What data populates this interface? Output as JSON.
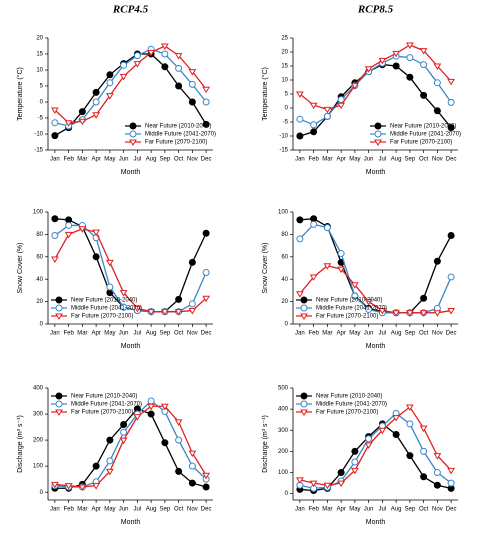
{
  "chart_data": [
    {
      "type": "line",
      "title": "RCP4.5",
      "xlabel": "Month",
      "ylabel": "Temperature (°C)",
      "categories": [
        "Jan",
        "Feb",
        "Mar",
        "Apr",
        "May",
        "Jun",
        "Jul",
        "Aug",
        "Sep",
        "Oct",
        "Nov",
        "Dec"
      ],
      "ylim": [
        -15,
        20
      ],
      "yticks": [
        -15,
        -10,
        -5,
        0,
        5,
        10,
        15,
        20
      ],
      "legend": "lower right",
      "series": [
        {
          "name": "Near Future (2010-2040)",
          "color": "#000000",
          "marker": "filled-circle",
          "values": [
            -10.5,
            -8,
            -3,
            3,
            8.5,
            12,
            15,
            15,
            11,
            5,
            0,
            -7
          ]
        },
        {
          "name": "Middle Future (2041-2070)",
          "color": "#3a87c8",
          "marker": "open-circle",
          "values": [
            -6.5,
            -7.5,
            -5.5,
            0,
            6,
            11.5,
            14.5,
            16.5,
            15,
            10.5,
            5.5,
            0
          ]
        },
        {
          "name": "Far Future (2070-2100)",
          "color": "#e02020",
          "marker": "open-triangle",
          "values": [
            -2.5,
            -6.5,
            -6,
            -4,
            2,
            8,
            12,
            15.5,
            17.5,
            14.5,
            9.5,
            4
          ]
        }
      ]
    },
    {
      "type": "line",
      "title": "RCP8.5",
      "xlabel": "Month",
      "ylabel": "Temperature (°C)",
      "categories": [
        "Jan",
        "Feb",
        "Mar",
        "Apr",
        "May",
        "Jun",
        "Jul",
        "Aug",
        "Sep",
        "Oct",
        "Nov",
        "Dec"
      ],
      "ylim": [
        -15,
        25
      ],
      "yticks": [
        -15,
        -10,
        -5,
        0,
        5,
        10,
        15,
        20,
        25
      ],
      "legend": "lower right",
      "series": [
        {
          "name": "Near Future (2010-2040)",
          "color": "#000000",
          "marker": "filled-circle",
          "values": [
            -10,
            -8.5,
            -3,
            4,
            9,
            13,
            15.5,
            15,
            11,
            4.5,
            -1,
            -7
          ]
        },
        {
          "name": "Middle Future (2041-2070)",
          "color": "#3a87c8",
          "marker": "open-circle",
          "values": [
            -4,
            -6,
            -3,
            3,
            8,
            13,
            16,
            18.5,
            18,
            15.5,
            9,
            2
          ]
        },
        {
          "name": "Far Future (2070-2100)",
          "color": "#e02020",
          "marker": "open-triangle",
          "values": [
            5,
            1,
            -0.5,
            1,
            8,
            14,
            17,
            19.5,
            22.5,
            20.5,
            15,
            9.5
          ]
        }
      ]
    },
    {
      "type": "line",
      "xlabel": "Month",
      "ylabel": "Snow Cover (%)",
      "categories": [
        "Jan",
        "Feb",
        "Mar",
        "Apr",
        "May",
        "Jun",
        "Jul",
        "Aug",
        "Sep",
        "Oct",
        "Nov",
        "Dec"
      ],
      "ylim": [
        0,
        100
      ],
      "yticks": [
        0,
        20,
        40,
        60,
        80,
        100
      ],
      "legend": "lower left",
      "series": [
        {
          "name": "Near Future (2010-2040)",
          "color": "#000000",
          "marker": "filled-circle",
          "values": [
            94,
            93,
            87,
            60,
            28,
            15,
            12,
            11,
            11,
            22,
            55,
            81
          ]
        },
        {
          "name": "Middle Future (2041-2070)",
          "color": "#3a87c8",
          "marker": "open-circle",
          "values": [
            79,
            88,
            88,
            77,
            33,
            15,
            12,
            11,
            11,
            11,
            18,
            46
          ]
        },
        {
          "name": "Far Future (2070-2100)",
          "color": "#e02020",
          "marker": "open-triangle",
          "values": [
            58,
            80,
            85,
            82,
            55,
            28,
            14,
            11,
            11,
            11,
            12,
            23
          ]
        }
      ]
    },
    {
      "type": "line",
      "xlabel": "Month",
      "ylabel": "Snow Cover (%)",
      "categories": [
        "Jan",
        "Feb",
        "Mar",
        "Apr",
        "May",
        "Jun",
        "Jul",
        "Aug",
        "Sep",
        "Oct",
        "Nov",
        "Dec"
      ],
      "ylim": [
        0,
        100
      ],
      "yticks": [
        0,
        20,
        40,
        60,
        80,
        100
      ],
      "legend": "lower left",
      "series": [
        {
          "name": "Near Future (2010-2040)",
          "color": "#000000",
          "marker": "filled-circle",
          "values": [
            93,
            94,
            87,
            55,
            25,
            14,
            11,
            10,
            10,
            23,
            56,
            79
          ]
        },
        {
          "name": "Middle Future (2041-2070)",
          "color": "#3a87c8",
          "marker": "open-circle",
          "values": [
            76,
            89,
            86,
            63,
            25,
            13,
            10,
            10,
            10,
            10,
            14,
            42
          ]
        },
        {
          "name": "Far Future (2070-2100)",
          "color": "#e02020",
          "marker": "open-triangle",
          "values": [
            27,
            42,
            52,
            49,
            35,
            20,
            12,
            10,
            10,
            10,
            10,
            12
          ]
        }
      ]
    },
    {
      "type": "line",
      "xlabel": "Month",
      "ylabel": "Discharge (m³ s⁻¹)",
      "categories": [
        "Jan",
        "Feb",
        "Mar",
        "Apr",
        "May",
        "Jun",
        "Jul",
        "Aug",
        "Sep",
        "Oct",
        "Nov",
        "Dec"
      ],
      "ylim": [
        -30,
        400
      ],
      "yticks": [
        0,
        100,
        200,
        300,
        400
      ],
      "legend": "upper left",
      "series": [
        {
          "name": "Near Future (2010-2040)",
          "color": "#000000",
          "marker": "filled-circle",
          "values": [
            15,
            15,
            30,
            100,
            200,
            260,
            320,
            300,
            190,
            80,
            35,
            20
          ]
        },
        {
          "name": "Middle Future (2041-2070)",
          "color": "#3a87c8",
          "marker": "open-circle",
          "values": [
            25,
            20,
            20,
            40,
            120,
            230,
            300,
            350,
            310,
            200,
            100,
            50
          ]
        },
        {
          "name": "Far Future (2070-2100)",
          "color": "#e02020",
          "marker": "open-triangle",
          "values": [
            30,
            25,
            20,
            25,
            80,
            200,
            290,
            330,
            330,
            270,
            150,
            65
          ]
        }
      ]
    },
    {
      "type": "line",
      "xlabel": "Month",
      "ylabel": "Discharge (m³ s⁻¹)",
      "categories": [
        "Jan",
        "Feb",
        "Mar",
        "Apr",
        "May",
        "Jun",
        "Jul",
        "Aug",
        "Sep",
        "Oct",
        "Nov",
        "Dec"
      ],
      "ylim": [
        -30,
        500
      ],
      "yticks": [
        0,
        100,
        200,
        300,
        400,
        500
      ],
      "legend": "upper left",
      "series": [
        {
          "name": "Near Future (2010-2040)",
          "color": "#000000",
          "marker": "filled-circle",
          "values": [
            20,
            15,
            25,
            100,
            200,
            270,
            330,
            280,
            180,
            80,
            40,
            25
          ]
        },
        {
          "name": "Middle Future (2041-2070)",
          "color": "#3a87c8",
          "marker": "open-circle",
          "values": [
            40,
            25,
            30,
            60,
            150,
            260,
            320,
            380,
            330,
            200,
            100,
            50
          ]
        },
        {
          "name": "Far Future (2070-2100)",
          "color": "#e02020",
          "marker": "open-triangle",
          "values": [
            65,
            50,
            40,
            50,
            110,
            230,
            300,
            360,
            410,
            310,
            180,
            110
          ]
        }
      ]
    }
  ]
}
